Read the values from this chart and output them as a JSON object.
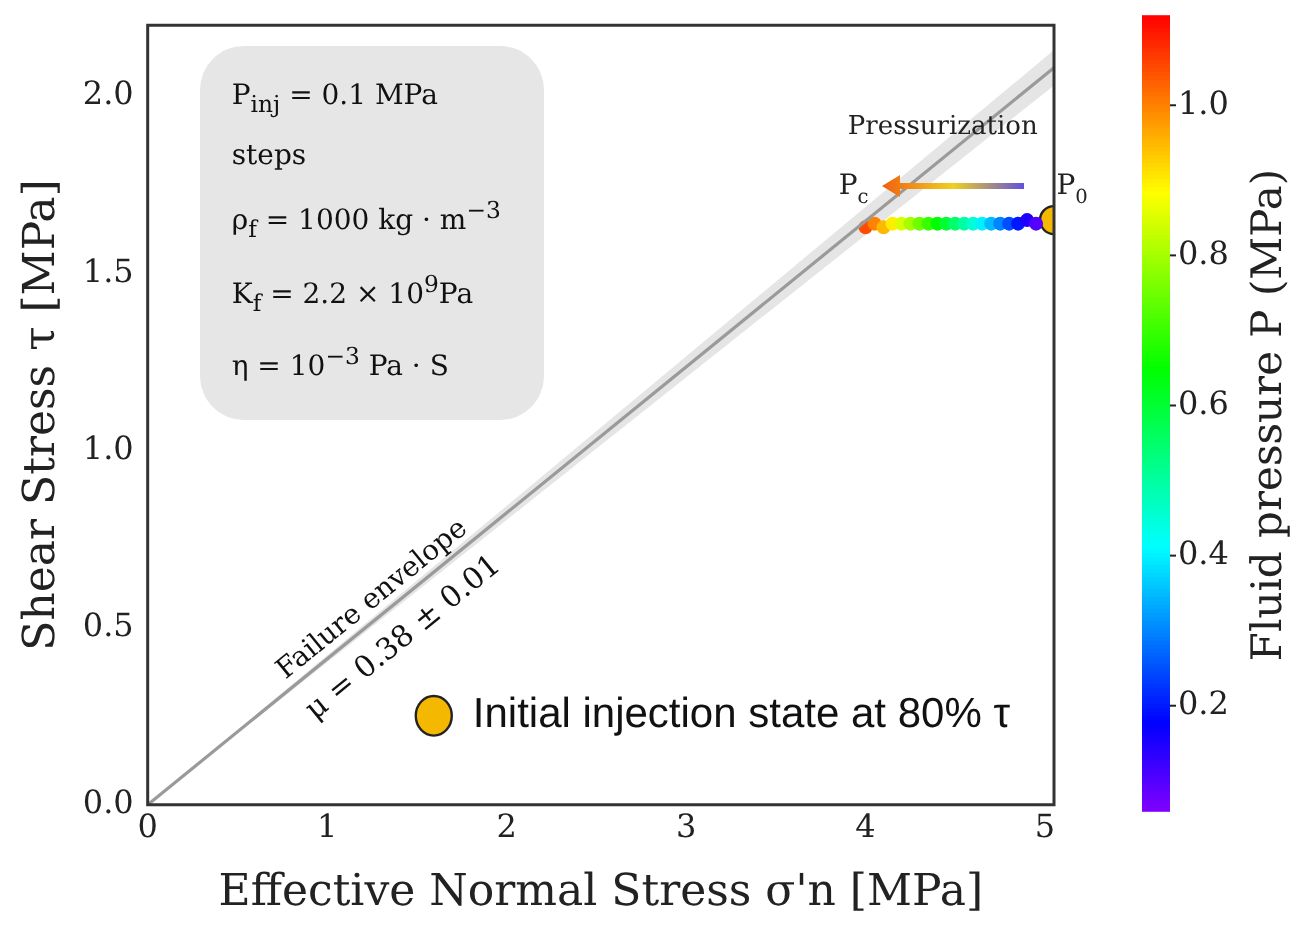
{
  "chart_data": {
    "type": "scatter",
    "xlabel": "Effective Normal Stress σ'n [MPa]",
    "ylabel": "Shear Stress τ [MPa]",
    "clabel": "Fluid pressure P (MPa)",
    "xlim": [
      0,
      5.05
    ],
    "ylim": [
      0,
      2.2
    ],
    "xticks": [
      0,
      1,
      2,
      3,
      4,
      5
    ],
    "yticks": [
      {
        "value": 0,
        "label": "0.0"
      },
      {
        "value": 0.5,
        "label": "0.5"
      },
      {
        "value": 1,
        "label": "1.0"
      },
      {
        "value": 1.5,
        "label": "1.5"
      },
      {
        "value": 2,
        "label": "2.0"
      }
    ],
    "clim": [
      0.06,
      1.12
    ],
    "cticks": [
      {
        "value": 0.2,
        "label": "0.2"
      },
      {
        "value": 0.4,
        "label": "0.4"
      },
      {
        "value": 0.6,
        "label": "0.6"
      },
      {
        "value": 0.8,
        "label": "0.8"
      },
      {
        "value": 1,
        "label": "1.0"
      }
    ],
    "legend": "bottom right",
    "series": [
      {
        "type": "line",
        "color": "#9a9a9a",
        "x": [
          0,
          5.05
        ],
        "values": [
          0,
          2.08
        ],
        "lower": [
          0,
          2.03
        ],
        "upper": [
          0,
          2.13
        ],
        "marker": "none"
      },
      {
        "type": "scatter",
        "marker": "circle",
        "x": [
          4.0,
          4.05,
          4.1,
          4.15,
          4.2,
          4.25,
          4.3,
          4.35,
          4.4,
          4.45,
          4.5,
          4.55,
          4.6,
          4.65,
          4.7,
          4.75,
          4.8,
          4.85,
          4.9,
          4.95
        ],
        "values": [
          1.63,
          1.64,
          1.63,
          1.64,
          1.64,
          1.64,
          1.64,
          1.64,
          1.64,
          1.64,
          1.64,
          1.64,
          1.64,
          1.64,
          1.64,
          1.64,
          1.64,
          1.64,
          1.65,
          1.64
        ],
        "colors": [
          "#ff4c00",
          "#ff8200",
          "#ffb800",
          "#ffee00",
          "#daff00",
          "#a4ff00",
          "#6eff00",
          "#37ff00",
          "#01ff00",
          "#00ff35",
          "#00ff6b",
          "#00ffa1",
          "#00ffd7",
          "#00f0ff",
          "#00bbff",
          "#0084ff",
          "#004eff",
          "#0018ff",
          "#1e00ff",
          "#5400ff"
        ],
        "cvalues": [
          1.05,
          1.0,
          0.95,
          0.9,
          0.85,
          0.8,
          0.75,
          0.7,
          0.65,
          0.6,
          0.55,
          0.5,
          0.45,
          0.4,
          0.35,
          0.3,
          0.25,
          0.2,
          0.15,
          0.1
        ]
      },
      {
        "name": "Initial injection state at 80% τ",
        "type": "scatter",
        "marker": "circle",
        "color": "#f5b800",
        "x": [
          5.05
        ],
        "values": [
          1.65
        ]
      }
    ],
    "annotations": [
      "μ = 0.38 ± 0.01",
      "Failure envelope",
      "Pressurization",
      "P$_{c}$",
      "P$_{0}$",
      "P$_{inj}$ =  0.1 MPa steps",
      "ρ$_{f}$ = 1000 kg · m$^{−3}$",
      "K$_{f}$ = 2.2 × 10$^{9}$Pa",
      "η = 10$^{−3}$ Pa · S"
    ]
  }
}
